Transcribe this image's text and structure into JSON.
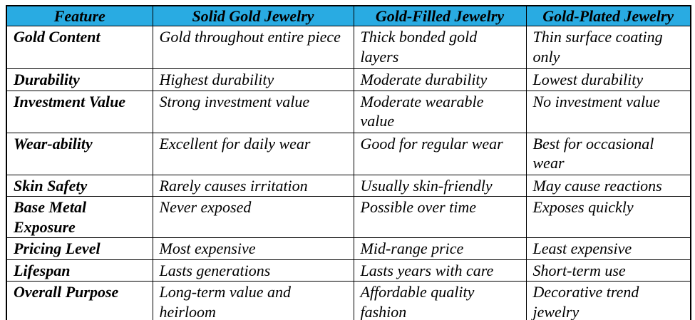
{
  "colors": {
    "header_bg": "#29ABE2",
    "border": "#000000",
    "text": "#000000"
  },
  "table": {
    "columns": [
      "Feature",
      "Solid Gold Jewelry",
      "Gold-Filled Jewelry",
      "Gold-Plated Jewelry"
    ],
    "rows": [
      [
        "Gold Content",
        "Gold throughout entire piece",
        "Thick bonded gold layers",
        "Thin surface coating only"
      ],
      [
        "Durability",
        "Highest durability",
        "Moderate durability",
        "Lowest durability"
      ],
      [
        "Investment Value",
        "Strong investment value",
        "Moderate wearable value",
        "No investment value"
      ],
      [
        "Wear-ability",
        "Excellent for daily wear",
        "Good for regular wear",
        "Best for occasional wear"
      ],
      [
        "Skin Safety",
        "Rarely causes irritation",
        "Usually skin-friendly",
        "May cause reactions"
      ],
      [
        "Base Metal Exposure",
        "Never exposed",
        "Possible over time",
        "Exposes quickly"
      ],
      [
        "Pricing Level",
        "Most expensive",
        "Mid-range price",
        "Least expensive"
      ],
      [
        "Lifespan",
        "Lasts generations",
        "Lasts years with care",
        "Short-term use"
      ],
      [
        "Overall Purpose",
        "Long-term value and heirloom",
        "Affordable quality fashion",
        "Decorative trend jewelry"
      ]
    ]
  }
}
